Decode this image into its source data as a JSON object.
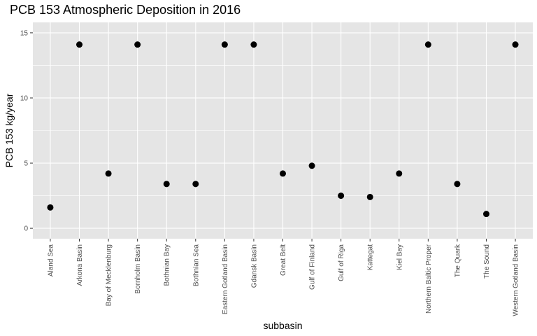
{
  "chart_data": {
    "type": "scatter",
    "title": "PCB 153 Atmospheric Deposition in 2016",
    "xlabel": "subbasin",
    "ylabel": "PCB 153 kg/year",
    "ylim": [
      -0.8,
      15.8
    ],
    "yticks": [
      0,
      5,
      10,
      15
    ],
    "ytick_labels": [
      "0",
      "5",
      "10",
      "15"
    ],
    "grid": true,
    "background": "#e5e5e5",
    "grid_color": "#ffffff",
    "point_color": "#000000",
    "categories": [
      "Aland Sea",
      "Arkona Basin",
      "Bay of Mecklenburg",
      "Bornholm Basin",
      "Bothnian Bay",
      "Bothnian Sea",
      "Eastern Gotland Basin",
      "Gdansk Basin",
      "Great Belt",
      "Gulf of Finland",
      "Gulf of Riga",
      "Kattegat",
      "Kiel Bay",
      "Northern Baltic Proper",
      "The Quark",
      "The Sound",
      "Western Gotland Basin"
    ],
    "values": [
      1.6,
      14.1,
      4.2,
      14.1,
      3.4,
      3.4,
      14.1,
      14.1,
      4.2,
      4.8,
      2.5,
      2.4,
      4.2,
      14.1,
      3.4,
      1.1,
      14.1
    ]
  }
}
